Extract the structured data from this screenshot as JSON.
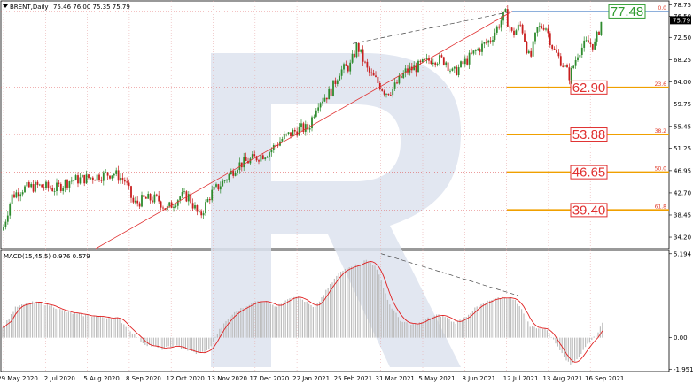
{
  "header": {
    "symbol": "BRENT,Daily",
    "ohlc": "75.46 76.00 75.35 75.79"
  },
  "macd_header": "MACD(15,45,5) 0.976 0.579",
  "colors": {
    "bull": "#2e8b2e",
    "bear": "#c81e1e",
    "trend": "#e03030",
    "fib": "#f0a000",
    "fib_dotted": "#e06060",
    "current_line": "#4a80c8",
    "macd_hist": "#bdbdbd",
    "macd_signal": "#e02020",
    "watermark": "#dde3ee"
  },
  "chart_data": [
    {
      "type": "candlestick",
      "title": "BRENT,Daily",
      "ylim": [
        32.0,
        79.5
      ],
      "y_ticks": [
        "78.75",
        "76.50",
        "72.50",
        "68.25",
        "64.00",
        "59.75",
        "55.45",
        "51.25",
        "46.95",
        "42.70",
        "38.45",
        "34.20"
      ],
      "x_ticks": [
        "29 May 2020",
        "2 Jul 2020",
        "5 Aug 2020",
        "8 Sep 2020",
        "12 Oct 2020",
        "13 Nov 2020",
        "17 Dec 2020",
        "22 Jan 2021",
        "25 Feb 2021",
        "31 Mar 2021",
        "5 May 2021",
        "8 Jun 2021",
        "12 Jul 2021",
        "13 Aug 2021",
        "16 Sep 2021"
      ],
      "current_price": "75.79",
      "close_path": [
        [
          0,
          35.5
        ],
        [
          10,
          42
        ],
        [
          22,
          43.5
        ],
        [
          40,
          44
        ],
        [
          60,
          43.5
        ],
        [
          75,
          45
        ],
        [
          95,
          45.5
        ],
        [
          110,
          46
        ],
        [
          125,
          46.5
        ],
        [
          138,
          45
        ],
        [
          148,
          40.5
        ],
        [
          160,
          41.5
        ],
        [
          175,
          41.5
        ],
        [
          185,
          39.5
        ],
        [
          200,
          42
        ],
        [
          210,
          42
        ],
        [
          222,
          38
        ],
        [
          235,
          42.5
        ],
        [
          250,
          45
        ],
        [
          265,
          48
        ],
        [
          280,
          49
        ],
        [
          300,
          50.5
        ],
        [
          315,
          53
        ],
        [
          335,
          55
        ],
        [
          345,
          55
        ],
        [
          355,
          60
        ],
        [
          370,
          62
        ],
        [
          380,
          66
        ],
        [
          392,
          67
        ],
        [
          400,
          71
        ],
        [
          412,
          66
        ],
        [
          420,
          64.5
        ],
        [
          432,
          62
        ],
        [
          440,
          62.5
        ],
        [
          455,
          66
        ],
        [
          470,
          67
        ],
        [
          485,
          68.5
        ],
        [
          500,
          68
        ],
        [
          508,
          65.5
        ],
        [
          520,
          67.5
        ],
        [
          535,
          70
        ],
        [
          550,
          72
        ],
        [
          560,
          75
        ],
        [
          567,
          77.1
        ],
        [
          575,
          73
        ],
        [
          585,
          75
        ],
        [
          595,
          68
        ],
        [
          603,
          74
        ],
        [
          612,
          75
        ],
        [
          622,
          70
        ],
        [
          630,
          68
        ],
        [
          640,
          65
        ],
        [
          650,
          70
        ],
        [
          660,
          71.5
        ],
        [
          668,
          71
        ],
        [
          676,
          75.79
        ]
      ],
      "levels": [
        {
          "value": 77.48,
          "label": "77.48",
          "pct": "0.0"
        },
        {
          "value": 62.9,
          "label": "62.90",
          "pct": "23.6"
        },
        {
          "value": 53.88,
          "label": "53.88",
          "pct": "38.2"
        },
        {
          "value": 46.65,
          "label": "46.65",
          "pct": "50.0"
        },
        {
          "value": 39.4,
          "label": "39.40",
          "pct": "61.8"
        }
      ],
      "trend_line": [
        [
          108,
          32.0
        ],
        [
          578,
          77.48
        ]
      ],
      "top_line": [
        [
          398,
          71.3
        ],
        [
          578,
          77.48
        ]
      ]
    },
    {
      "type": "histogram",
      "title": "MACD(15,45,5) 0.976 0.579",
      "ylim": [
        -2.1,
        5.4
      ],
      "y_ticks": [
        "5.194",
        "0.00",
        "-1.951"
      ],
      "macd_path": [
        [
          0,
          0.6
        ],
        [
          15,
          1.9
        ],
        [
          35,
          2.2
        ],
        [
          55,
          2.0
        ],
        [
          70,
          1.6
        ],
        [
          90,
          1.4
        ],
        [
          110,
          1.3
        ],
        [
          130,
          1.2
        ],
        [
          145,
          0.4
        ],
        [
          160,
          -0.4
        ],
        [
          180,
          -0.7
        ],
        [
          195,
          -0.5
        ],
        [
          210,
          -0.8
        ],
        [
          220,
          -1.0
        ],
        [
          232,
          -0.8
        ],
        [
          245,
          0.5
        ],
        [
          258,
          1.4
        ],
        [
          275,
          2.0
        ],
        [
          290,
          2.3
        ],
        [
          300,
          2.2
        ],
        [
          310,
          1.9
        ],
        [
          320,
          2.4
        ],
        [
          330,
          2.6
        ],
        [
          340,
          2.3
        ],
        [
          352,
          1.8
        ],
        [
          365,
          2.9
        ],
        [
          378,
          3.9
        ],
        [
          390,
          4.4
        ],
        [
          400,
          4.5
        ],
        [
          410,
          4.8
        ],
        [
          420,
          4.5
        ],
        [
          428,
          3.4
        ],
        [
          436,
          2.1
        ],
        [
          450,
          1.0
        ],
        [
          460,
          0.8
        ],
        [
          470,
          0.9
        ],
        [
          480,
          1.2
        ],
        [
          490,
          1.4
        ],
        [
          500,
          1.3
        ],
        [
          510,
          0.9
        ],
        [
          520,
          1.2
        ],
        [
          535,
          1.9
        ],
        [
          550,
          2.3
        ],
        [
          565,
          2.5
        ],
        [
          578,
          2.4
        ],
        [
          588,
          1.5
        ],
        [
          595,
          0.7
        ],
        [
          605,
          0.6
        ],
        [
          615,
          0.5
        ],
        [
          622,
          -0.2
        ],
        [
          630,
          -0.8
        ],
        [
          640,
          -1.7
        ],
        [
          650,
          -1.2
        ],
        [
          660,
          -0.4
        ],
        [
          670,
          0.2
        ],
        [
          678,
          0.97
        ]
      ],
      "signal_lag": 4,
      "divergence_line": [
        [
          430,
          5.2
        ],
        [
          585,
          2.6
        ]
      ]
    }
  ]
}
